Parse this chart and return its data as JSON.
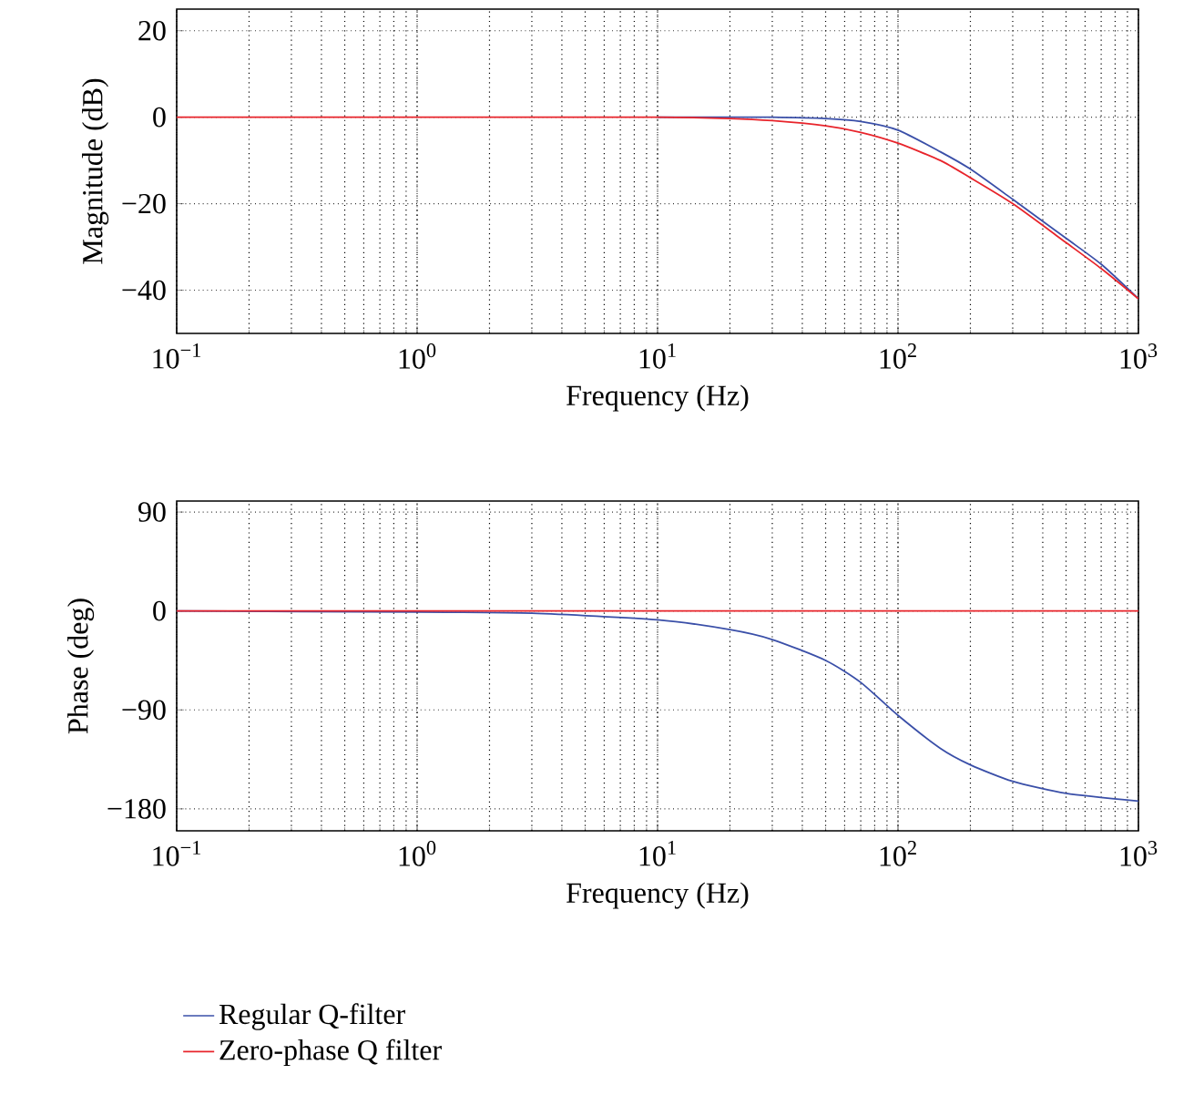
{
  "chart_data": [
    {
      "type": "line",
      "xlabel": "Frequency (Hz)",
      "ylabel": "Magnitude (dB)",
      "log": "x",
      "grid": true,
      "xlim": [
        0.1,
        1000
      ],
      "ylim": [
        -50,
        25
      ],
      "xticks": [
        {
          "value": 0.1,
          "label": "10$^{−1}$"
        },
        {
          "value": 1,
          "label": "10$^{0}$"
        },
        {
          "value": 10,
          "label": "10$^{1}$"
        },
        {
          "value": 100,
          "label": "10$^{2}$"
        },
        {
          "value": 1000,
          "label": "10$^{3}$"
        }
      ],
      "yticks": [
        {
          "value": -40,
          "label": "−40"
        },
        {
          "value": -20,
          "label": "−20"
        },
        0,
        20
      ],
      "series": [
        {
          "color": "#3a4fa8",
          "x": [
            10,
            20,
            30,
            50,
            70,
            100,
            150,
            200,
            300,
            500,
            700,
            1000
          ],
          "values": [
            0,
            0,
            0,
            -0.3,
            -1,
            -3,
            -8,
            -12,
            -19,
            -28,
            -34,
            -42
          ]
        },
        {
          "color": "#e8242b",
          "x": [
            0.1,
            1,
            10,
            20,
            30,
            50,
            70,
            100,
            150,
            200,
            300,
            500,
            700,
            1000
          ],
          "values": [
            0,
            0,
            0,
            -0.3,
            -0.8,
            -2,
            -3.5,
            -6,
            -10,
            -14,
            -20,
            -29,
            -35,
            -42
          ]
        }
      ]
    },
    {
      "type": "line",
      "xlabel": "Frequency (Hz)",
      "ylabel": "Phase (deg)",
      "log": "x",
      "grid": true,
      "legend": "bottom",
      "xlim": [
        0.1,
        1000
      ],
      "ylim": [
        -200,
        100
      ],
      "xticks": [
        {
          "value": 0.1,
          "label": "10$^{−1}$"
        },
        {
          "value": 1,
          "label": "10$^{0}$"
        },
        {
          "value": 10,
          "label": "10$^{1}$"
        },
        {
          "value": 100,
          "label": "10$^{2}$"
        },
        {
          "value": 1000,
          "label": "10$^{3}$"
        }
      ],
      "yticks": [
        {
          "value": -180,
          "label": "−180"
        },
        {
          "value": -90,
          "label": "−90"
        },
        0,
        90
      ],
      "series": [
        {
          "name": "Regular Q-filter",
          "color": "#3a4fa8",
          "x": [
            0.1,
            1,
            3,
            10,
            20,
            30,
            50,
            70,
            100,
            150,
            200,
            300,
            500,
            1000
          ],
          "values": [
            0,
            -1,
            -2,
            -8,
            -17,
            -26,
            -45,
            -65,
            -95,
            -125,
            -140,
            -155,
            -166,
            -173
          ]
        },
        {
          "name": "Zero-phase Q filter",
          "color": "#e8242b",
          "x": [
            0.1,
            1,
            10,
            100,
            1000
          ],
          "values": [
            0,
            0,
            0,
            0,
            0
          ]
        }
      ]
    }
  ]
}
